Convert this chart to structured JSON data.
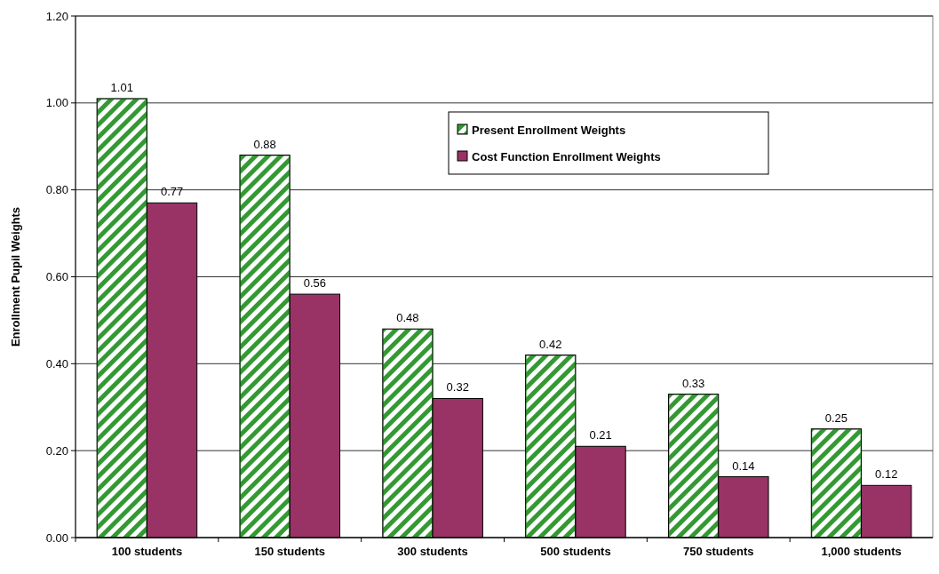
{
  "chart_data": {
    "type": "bar",
    "ylabel": "Enrollment Pupil Weights",
    "categories": [
      "100 students",
      "150 students",
      "300 students",
      "500 students",
      "750 students",
      "1,000 students"
    ],
    "series": [
      {
        "name": "Present Enrollment Weights",
        "color": "#339933",
        "values": [
          1.01,
          0.88,
          0.48,
          0.42,
          0.33,
          0.25
        ]
      },
      {
        "name": "Cost Function Enrollment Weights",
        "color": "#993366",
        "values": [
          0.77,
          0.56,
          0.32,
          0.21,
          0.14,
          0.12
        ]
      }
    ],
    "ylim": [
      0,
      1.2
    ],
    "yticks": [
      {
        "value": 0,
        "label": "0.00"
      },
      {
        "value": 0.2,
        "label": "0.20"
      },
      {
        "value": 0.4,
        "label": "0.40"
      },
      {
        "value": 0.6,
        "label": "0.60"
      },
      {
        "value": 0.8,
        "label": "0.80"
      },
      {
        "value": 1,
        "label": "1.00"
      },
      {
        "value": 1.2,
        "label": "1.20"
      }
    ],
    "grid": "y",
    "legend": "top right",
    "data_labels": true
  }
}
